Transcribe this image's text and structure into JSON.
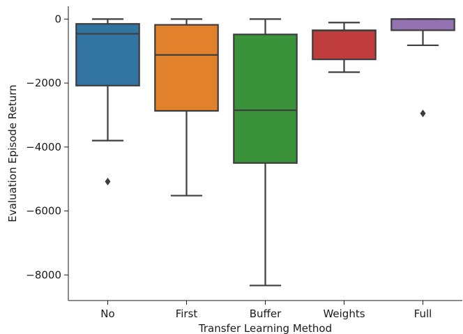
{
  "chart_data": {
    "type": "box",
    "title": "",
    "xlabel": "Transfer Learning Method",
    "ylabel": "Evaluation Episode Return",
    "ylim": [
      -8800,
      400
    ],
    "yticks": [
      0,
      -2000,
      -4000,
      -6000,
      -8000
    ],
    "ytick_labels": [
      "0",
      "−2000",
      "−4000",
      "−6000",
      "−8000"
    ],
    "grid": false,
    "categories": [
      "No",
      "First",
      "Buffer",
      "Weights",
      "Full"
    ],
    "boxes": [
      {
        "category": "No",
        "color": "#3274a1",
        "whisker_low": -3800,
        "q1": -2080,
        "median": -460,
        "q3": -150,
        "whisker_high": 0,
        "outliers": [
          -5080
        ]
      },
      {
        "category": "First",
        "color": "#e1812c",
        "whisker_low": -5520,
        "q1": -2870,
        "median": -1120,
        "q3": -180,
        "whisker_high": 0,
        "outliers": []
      },
      {
        "category": "Buffer",
        "color": "#3a923a",
        "whisker_low": -8330,
        "q1": -4500,
        "median": -2850,
        "q3": -480,
        "whisker_high": 0,
        "outliers": []
      },
      {
        "category": "Weights",
        "color": "#c03d3e",
        "whisker_low": -1660,
        "q1": -1260,
        "median": -360,
        "q3": -350,
        "whisker_high": -110,
        "outliers": []
      },
      {
        "category": "Full",
        "color": "#9372b2",
        "whisker_low": -820,
        "q1": -350,
        "median": 0,
        "q3": 0,
        "whisker_high": 0,
        "outliers": [
          -2950
        ]
      }
    ]
  }
}
